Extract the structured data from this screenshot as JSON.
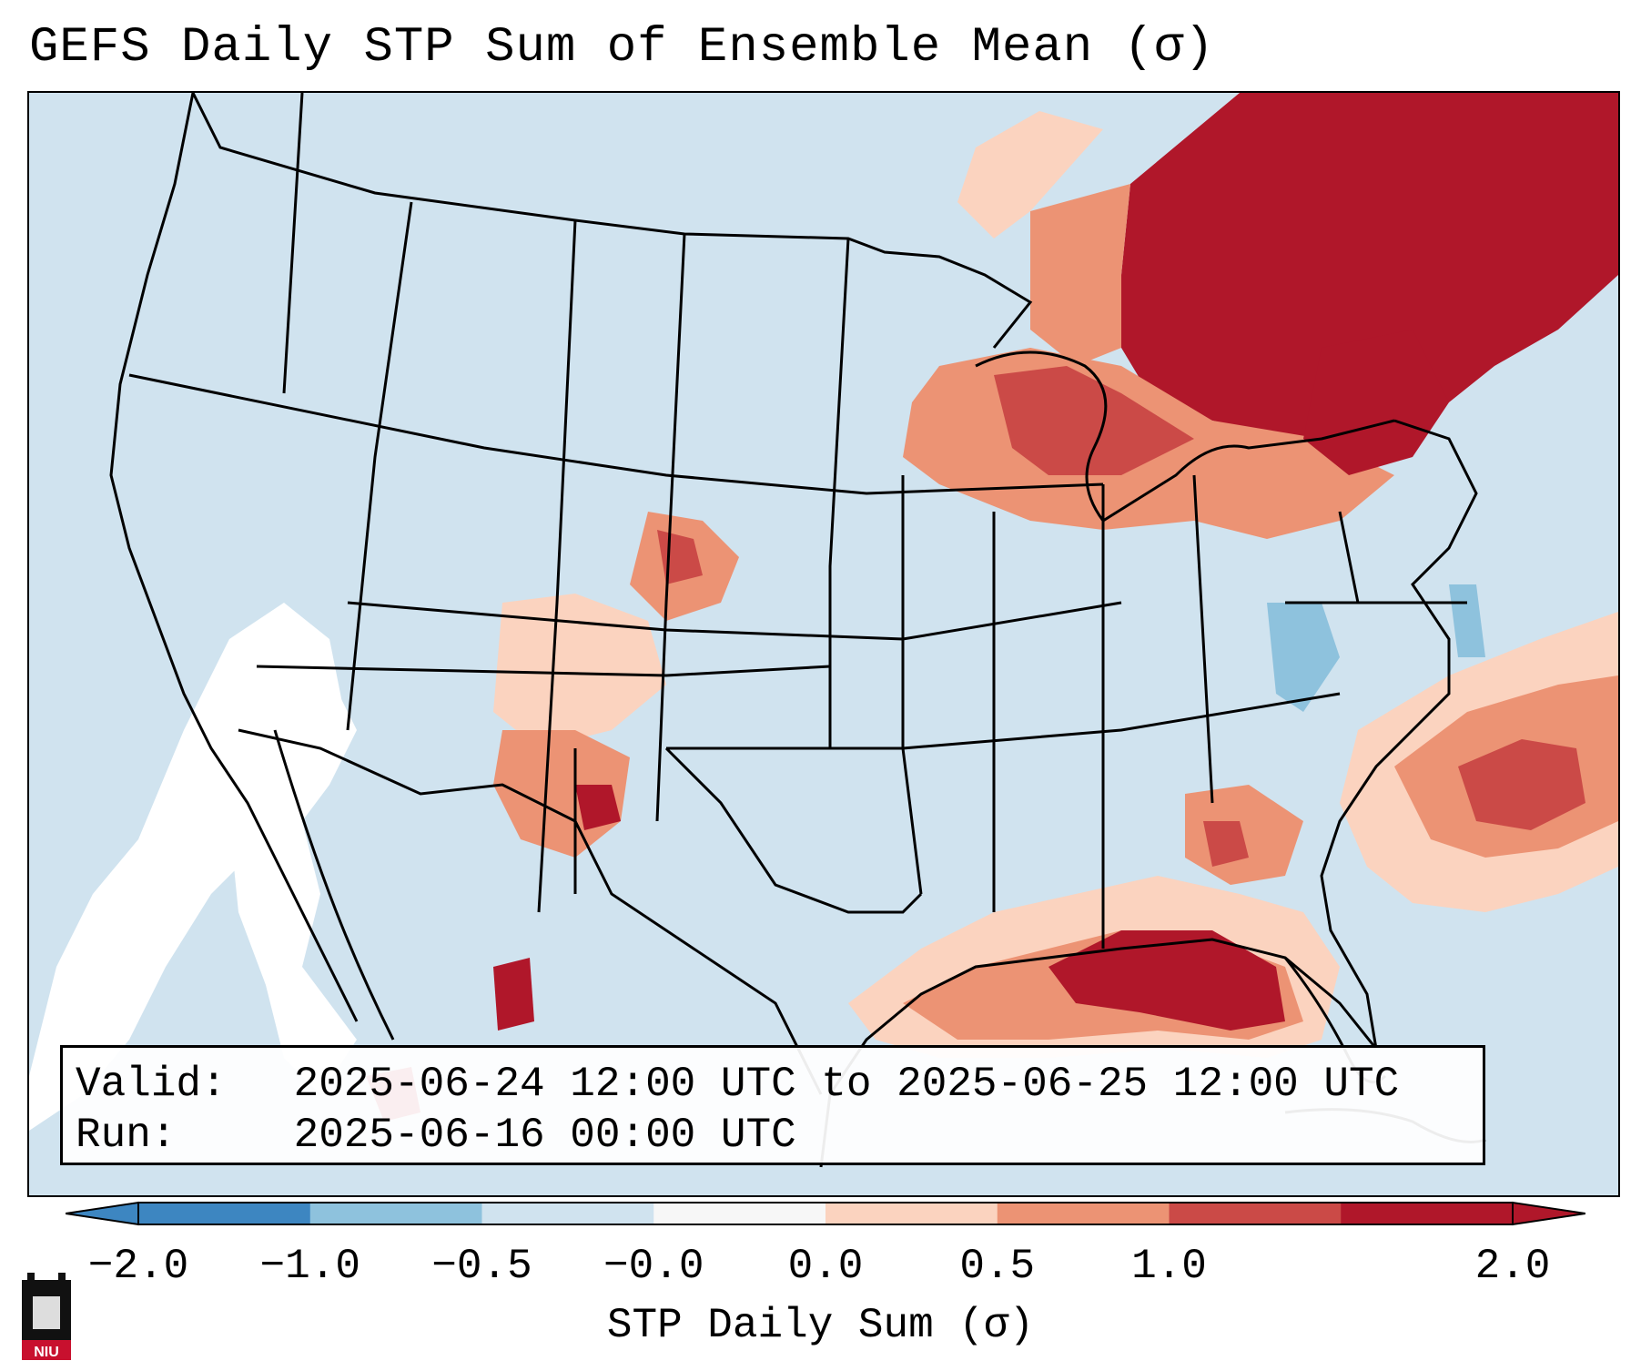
{
  "title": "GEFS Daily STP Sum of Ensemble Mean (σ)",
  "info": {
    "valid_label": "Valid:",
    "valid_value": "2025-06-24 12:00 UTC to 2025-06-25 12:00 UTC",
    "run_label": "Run:",
    "run_value": "2025-06-16 00:00 UTC"
  },
  "colorbar": {
    "label": "STP Daily Sum (σ)",
    "ticks": [
      "−2.0",
      "−1.0",
      "−0.5",
      "−0.0",
      "0.0",
      "0.5",
      "1.0",
      "2.0"
    ],
    "bin_colors": [
      "#3d86c1",
      "#8ec2dd",
      "#d0e3ef",
      "#f7f7f7",
      "#fbd3bf",
      "#ec9374",
      "#cb4a47",
      "#b0172a"
    ],
    "extend": "both"
  },
  "logo_text": "NIU",
  "colors": {
    "background_sea_land": "#d0e3ef",
    "white_bin": "#ffffff",
    "light_red": "#fbd3bf",
    "mid_red": "#ec9374",
    "red": "#cb4a47",
    "dark_red": "#b0172a",
    "light_blue": "#8ec2dd"
  }
}
